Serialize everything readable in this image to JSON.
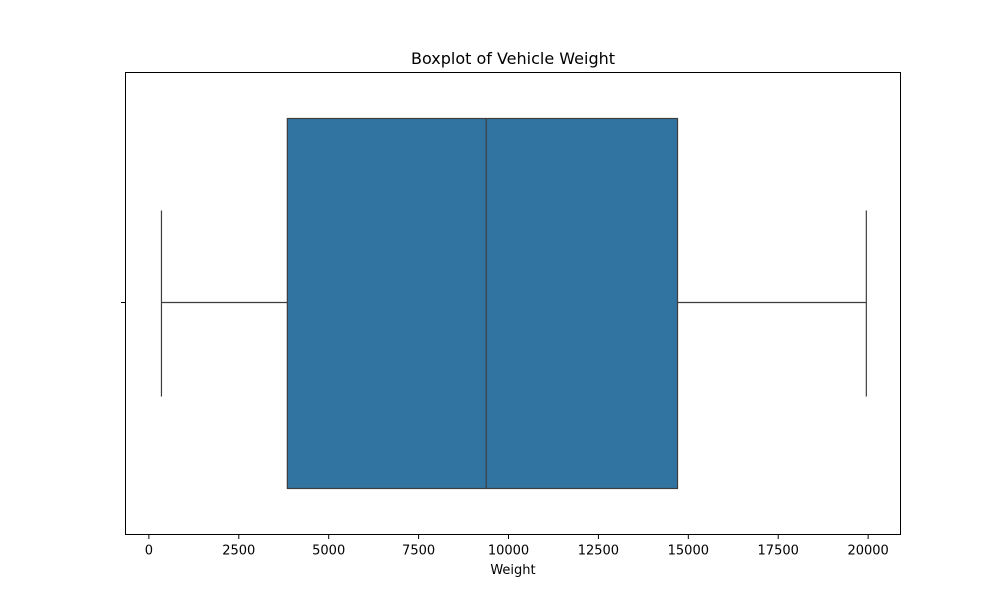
{
  "chart_data": {
    "type": "box",
    "title": "Boxplot of Vehicle Weight",
    "xlabel": "Weight",
    "ylabel": "",
    "orientation": "horizontal",
    "xlim": [
      -650,
      20900
    ],
    "xticks": [
      0,
      2500,
      5000,
      7500,
      10000,
      12500,
      15000,
      17500,
      20000
    ],
    "xtick_labels": [
      "0",
      "2500",
      "5000",
      "7500",
      "10000",
      "12500",
      "15000",
      "17500",
      "20000"
    ],
    "series": [
      {
        "whisker_low": 350,
        "q1": 3850,
        "median": 9380,
        "q3": 14700,
        "whisker_high": 19950
      }
    ],
    "grid": false,
    "box_color": "#3274a1",
    "line_color": "#3d3d3d"
  }
}
